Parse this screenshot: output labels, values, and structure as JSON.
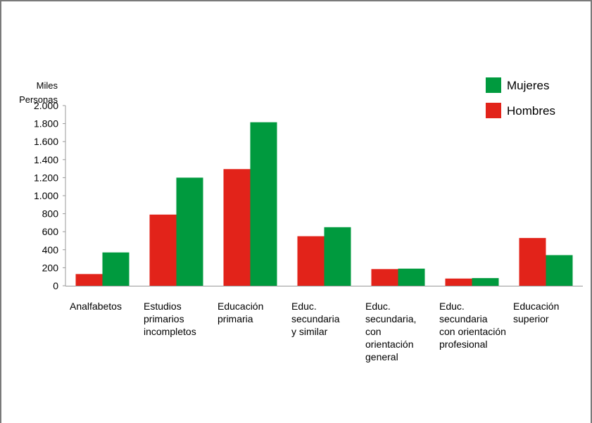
{
  "chart_data": {
    "type": "bar",
    "ylabel": [
      "Miles",
      "Personas"
    ],
    "ylim": [
      0,
      2000
    ],
    "yticks": [
      0,
      200,
      400,
      600,
      800,
      1000,
      1200,
      1400,
      1600,
      1800,
      2000
    ],
    "ytick_labels": [
      "0",
      "200",
      "400",
      "600",
      "800",
      "1.000",
      "1.200",
      "1.400",
      "1.600",
      "1.800",
      "2.000"
    ],
    "categories": [
      [
        "Analfabetos"
      ],
      [
        "Estudios",
        "primarios",
        "incompletos"
      ],
      [
        "Educación",
        "primaria"
      ],
      [
        "Educ.",
        "secundaria",
        "y similar"
      ],
      [
        "Educ.",
        "secundaria,",
        "con",
        "orientación",
        "general"
      ],
      [
        "Educ.",
        "secundaria",
        "con orientación",
        "profesional"
      ],
      [
        "Educación",
        "superior"
      ]
    ],
    "series": [
      {
        "name": "Hombres",
        "color": "#e2231a",
        "values": [
          130,
          790,
          1295,
          550,
          185,
          80,
          530
        ]
      },
      {
        "name": "Mujeres",
        "color": "#009a3e",
        "values": [
          370,
          1200,
          1815,
          650,
          190,
          85,
          340
        ]
      }
    ],
    "legend": {
      "placement": "top-right",
      "items": [
        {
          "name": "Mujeres",
          "color": "#009a3e"
        },
        {
          "name": "Hombres",
          "color": "#e2231a"
        }
      ]
    },
    "grid": false
  }
}
